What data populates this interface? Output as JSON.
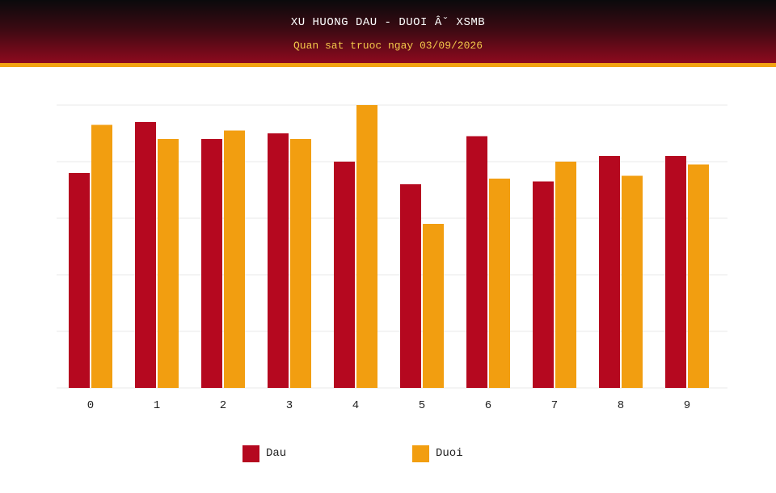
{
  "header": {
    "title": "XU HUONG DAU - DUOI Âˇ XSMB",
    "subtitle": "Quan sat truoc ngay 03/09/2026"
  },
  "colors": {
    "dau": "#b5081f",
    "duoi": "#f29e10",
    "grid": "#e8e8e8",
    "header_bottom": "#8e0a1e",
    "accent_stripe": "#f2a312"
  },
  "chart_data": {
    "type": "bar",
    "categories": [
      "0",
      "1",
      "2",
      "3",
      "4",
      "5",
      "6",
      "7",
      "8",
      "9"
    ],
    "series": [
      {
        "name": "Dau",
        "values": [
          38,
          47,
          44,
          45,
          40,
          36,
          44.5,
          36.5,
          41,
          41
        ]
      },
      {
        "name": "Duoi",
        "values": [
          46.5,
          44,
          45.5,
          44,
          50,
          29,
          37,
          40,
          37.5,
          39.5
        ]
      }
    ],
    "ylim": [
      0,
      50
    ],
    "grid": true,
    "legend": "bottom",
    "xlabel": "",
    "ylabel": ""
  }
}
